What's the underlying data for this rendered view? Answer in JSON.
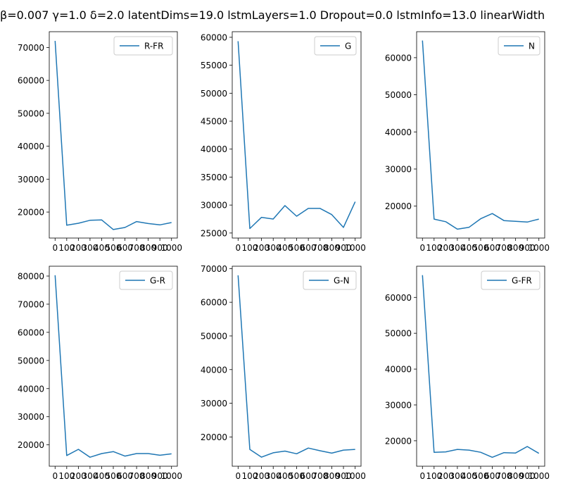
{
  "figure": {
    "suptitle": "β=0.007 γ=1.0 δ=2.0 latentDims=19.0 lstmLayers=1.0 Dropout=0.0 lstmInfo=13.0 linearWidth",
    "line_color": "#1f77b4"
  },
  "chart_data": [
    {
      "type": "line",
      "series": [
        {
          "name": "R-FR",
          "values": [
            72000,
            16000,
            16600,
            17500,
            17600,
            14700,
            15300,
            17100,
            16500,
            16100,
            16800
          ]
        }
      ],
      "x": [
        0,
        100,
        200,
        300,
        400,
        500,
        600,
        700,
        800,
        900,
        1000
      ],
      "xticks": [
        0,
        100,
        200,
        300,
        400,
        500,
        600,
        700,
        800,
        900,
        1000
      ],
      "xtick_labels": [
        "0",
        "100",
        "200",
        "300",
        "400",
        "500",
        "600",
        "700",
        "800",
        "900",
        "1000"
      ],
      "yticks": [
        20000,
        30000,
        40000,
        50000,
        60000,
        70000
      ],
      "ytick_labels": [
        "20000",
        "30000",
        "40000",
        "50000",
        "60000",
        "70000"
      ],
      "ylim": [
        12100,
        74800
      ],
      "legend": "upper right",
      "grid": false
    },
    {
      "type": "line",
      "series": [
        {
          "name": "G",
          "values": [
            59300,
            25800,
            27800,
            27500,
            29900,
            28000,
            29400,
            29400,
            28300,
            26000,
            30600
          ]
        }
      ],
      "x": [
        0,
        100,
        200,
        300,
        400,
        500,
        600,
        700,
        800,
        900,
        1000
      ],
      "xticks": [
        0,
        100,
        200,
        300,
        400,
        500,
        600,
        700,
        800,
        900,
        1000
      ],
      "xtick_labels": [
        "0",
        "100",
        "200",
        "300",
        "400",
        "500",
        "600",
        "700",
        "800",
        "900",
        "1000"
      ],
      "yticks": [
        25000,
        30000,
        35000,
        40000,
        45000,
        50000,
        55000,
        60000
      ],
      "ytick_labels": [
        "25000",
        "30000",
        "35000",
        "40000",
        "45000",
        "50000",
        "55000",
        "60000"
      ],
      "ylim": [
        24100,
        61000
      ],
      "legend": "upper right",
      "grid": false
    },
    {
      "type": "line",
      "series": [
        {
          "name": "N",
          "values": [
            64600,
            16500,
            15800,
            13800,
            14300,
            16600,
            18000,
            16100,
            15900,
            15700,
            16500
          ]
        }
      ],
      "x": [
        0,
        100,
        200,
        300,
        400,
        500,
        600,
        700,
        800,
        900,
        1000
      ],
      "xticks": [
        0,
        100,
        200,
        300,
        400,
        500,
        600,
        700,
        800,
        900,
        1000
      ],
      "xtick_labels": [
        "0",
        "100",
        "200",
        "300",
        "400",
        "500",
        "600",
        "700",
        "800",
        "900",
        "1000"
      ],
      "yticks": [
        20000,
        30000,
        40000,
        50000,
        60000
      ],
      "ytick_labels": [
        "20000",
        "30000",
        "40000",
        "50000",
        "60000"
      ],
      "ylim": [
        11400,
        67000
      ],
      "legend": "upper right",
      "grid": false
    },
    {
      "type": "line",
      "series": [
        {
          "name": "G-R",
          "values": [
            80300,
            16200,
            18400,
            15600,
            16900,
            17600,
            16000,
            16900,
            16900,
            16300,
            16800
          ]
        }
      ],
      "x": [
        0,
        100,
        200,
        300,
        400,
        500,
        600,
        700,
        800,
        900,
        1000
      ],
      "xticks": [
        0,
        100,
        200,
        300,
        400,
        500,
        600,
        700,
        800,
        900,
        1000
      ],
      "xtick_labels": [
        "0",
        "100",
        "200",
        "300",
        "400",
        "500",
        "600",
        "700",
        "800",
        "900",
        "1000"
      ],
      "yticks": [
        20000,
        30000,
        40000,
        50000,
        60000,
        70000,
        80000
      ],
      "ytick_labels": [
        "20000",
        "30000",
        "40000",
        "50000",
        "60000",
        "70000",
        "80000"
      ],
      "ylim": [
        12400,
        83500
      ],
      "legend": "upper right",
      "grid": false
    },
    {
      "type": "line",
      "series": [
        {
          "name": "G-N",
          "values": [
            68000,
            16300,
            14000,
            15300,
            15800,
            15000,
            16700,
            15900,
            15200,
            16100,
            16300
          ]
        }
      ],
      "x": [
        0,
        100,
        200,
        300,
        400,
        500,
        600,
        700,
        800,
        900,
        1000
      ],
      "xticks": [
        0,
        100,
        200,
        300,
        400,
        500,
        600,
        700,
        800,
        900,
        1000
      ],
      "xtick_labels": [
        "0",
        "100",
        "200",
        "300",
        "400",
        "500",
        "600",
        "700",
        "800",
        "900",
        "1000"
      ],
      "yticks": [
        20000,
        30000,
        40000,
        50000,
        60000,
        70000
      ],
      "ytick_labels": [
        "20000",
        "30000",
        "40000",
        "50000",
        "60000",
        "70000"
      ],
      "ylim": [
        11300,
        70700
      ],
      "legend": "upper right",
      "grid": false
    },
    {
      "type": "line",
      "series": [
        {
          "name": "G-FR",
          "values": [
            66200,
            16800,
            16900,
            17600,
            17400,
            16800,
            15400,
            16700,
            16600,
            18400,
            16500
          ]
        }
      ],
      "x": [
        0,
        100,
        200,
        300,
        400,
        500,
        600,
        700,
        800,
        900,
        1000
      ],
      "xticks": [
        0,
        100,
        200,
        300,
        400,
        500,
        600,
        700,
        800,
        900,
        1000
      ],
      "xtick_labels": [
        "0",
        "100",
        "200",
        "300",
        "400",
        "500",
        "600",
        "700",
        "800",
        "900",
        "1000"
      ],
      "yticks": [
        20000,
        30000,
        40000,
        50000,
        60000
      ],
      "ytick_labels": [
        "20000",
        "30000",
        "40000",
        "50000",
        "60000"
      ],
      "ylim": [
        12900,
        68700
      ],
      "legend": "upper right",
      "grid": false
    }
  ]
}
